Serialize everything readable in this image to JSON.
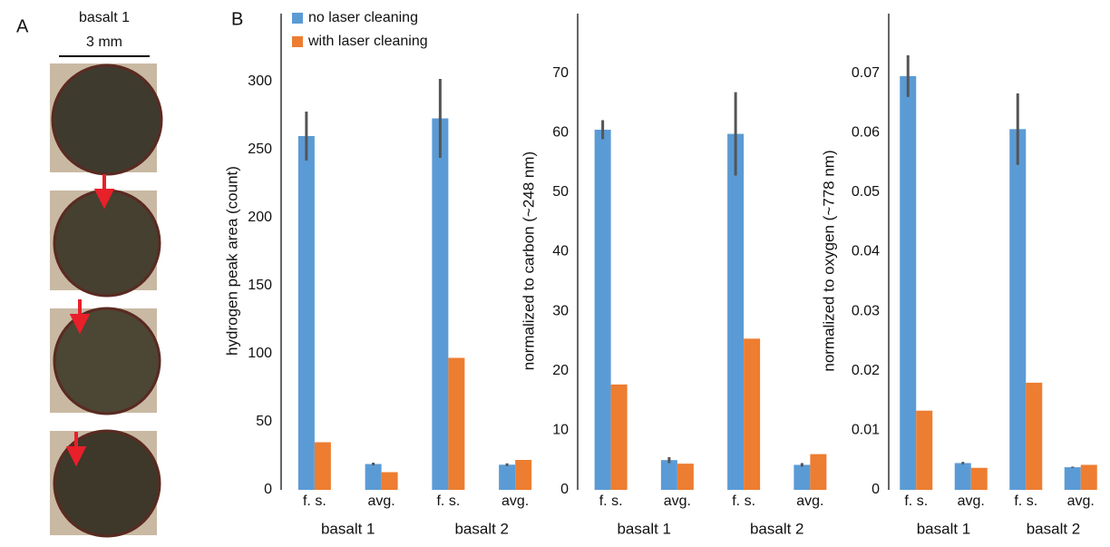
{
  "panels": {
    "a_label": "A",
    "a_title": "basalt 1",
    "a_scale": "3 mm",
    "b_label": "B"
  },
  "chart_data": [
    {
      "type": "bar",
      "y_label": "hydrogen peak area (count)",
      "categories": [
        "f. s.",
        "avg.",
        "f. s.",
        "avg."
      ],
      "groups": [
        "basalt 1",
        "basalt 2"
      ],
      "ylim": [
        0,
        350
      ],
      "yticks": [
        0,
        50,
        100,
        150,
        200,
        250,
        300
      ],
      "series": [
        {
          "name": "no laser cleaning",
          "color": "#5b9bd5",
          "values": [
            260,
            19,
            273,
            18.5
          ],
          "errors": [
            18,
            1,
            29,
            1
          ]
        },
        {
          "name": "with laser cleaning",
          "color": "#ed7d31",
          "values": [
            35,
            13,
            97,
            22
          ]
        }
      ]
    },
    {
      "type": "bar",
      "y_label": "normalized to carbon (~248 nm)",
      "categories": [
        "f. s.",
        "avg.",
        "f. s.",
        "avg."
      ],
      "groups": [
        "basalt 1",
        "basalt 2"
      ],
      "ylim": [
        0,
        80
      ],
      "yticks": [
        0,
        10,
        20,
        30,
        40,
        50,
        60,
        70
      ],
      "series": [
        {
          "color": "#5b9bd5",
          "values": [
            60.5,
            5,
            59.8,
            4.2
          ],
          "errors": [
            1.6,
            0.5,
            7,
            0.3
          ]
        },
        {
          "color": "#ed7d31",
          "values": [
            17.7,
            4.4,
            25.4,
            6
          ]
        }
      ]
    },
    {
      "type": "bar",
      "y_label": "normalized to oxygen (~778 nm)",
      "categories": [
        "f. s.",
        "avg.",
        "f. s.",
        "avg."
      ],
      "groups": [
        "basalt 1",
        "basalt 2"
      ],
      "ylim": [
        0,
        0.08
      ],
      "yticks": [
        0,
        0.01,
        0.02,
        0.03,
        0.04,
        0.05,
        0.06,
        0.07
      ],
      "series": [
        {
          "color": "#5b9bd5",
          "values": [
            0.0695,
            0.0045,
            0.0606,
            0.0038
          ],
          "errors": [
            0.0035,
            0.0002,
            0.006,
            0.0001
          ]
        },
        {
          "color": "#ed7d31",
          "values": [
            0.0133,
            0.0037,
            0.018,
            0.0042
          ]
        }
      ]
    }
  ]
}
